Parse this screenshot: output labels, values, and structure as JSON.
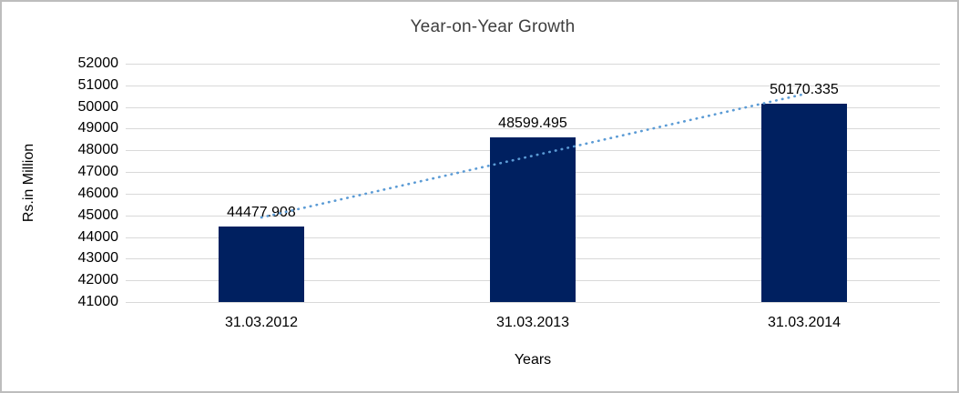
{
  "chart_data": {
    "type": "bar",
    "title": "Year-on-Year Growth",
    "xlabel": "Years",
    "ylabel": "Rs.in Million",
    "categories": [
      "31.03.2012",
      "31.03.2013",
      "31.03.2014"
    ],
    "values": [
      44477.908,
      48599.495,
      50170.335
    ],
    "value_labels": [
      "44477.908",
      "48599.495",
      "50170.335"
    ],
    "ylim": [
      41000,
      52000
    ],
    "ytick_step": 1000,
    "grid": "horizontal",
    "legend": "none",
    "trendline": "linear-dotted",
    "colors": {
      "bar": "#002060",
      "trendline": "#5b9bd5",
      "gridline": "#d9d9d9",
      "title_text": "#3f3f3f",
      "axis_text": "#000000",
      "frame_border": "#bdbdbd",
      "background": "#ffffff"
    }
  }
}
